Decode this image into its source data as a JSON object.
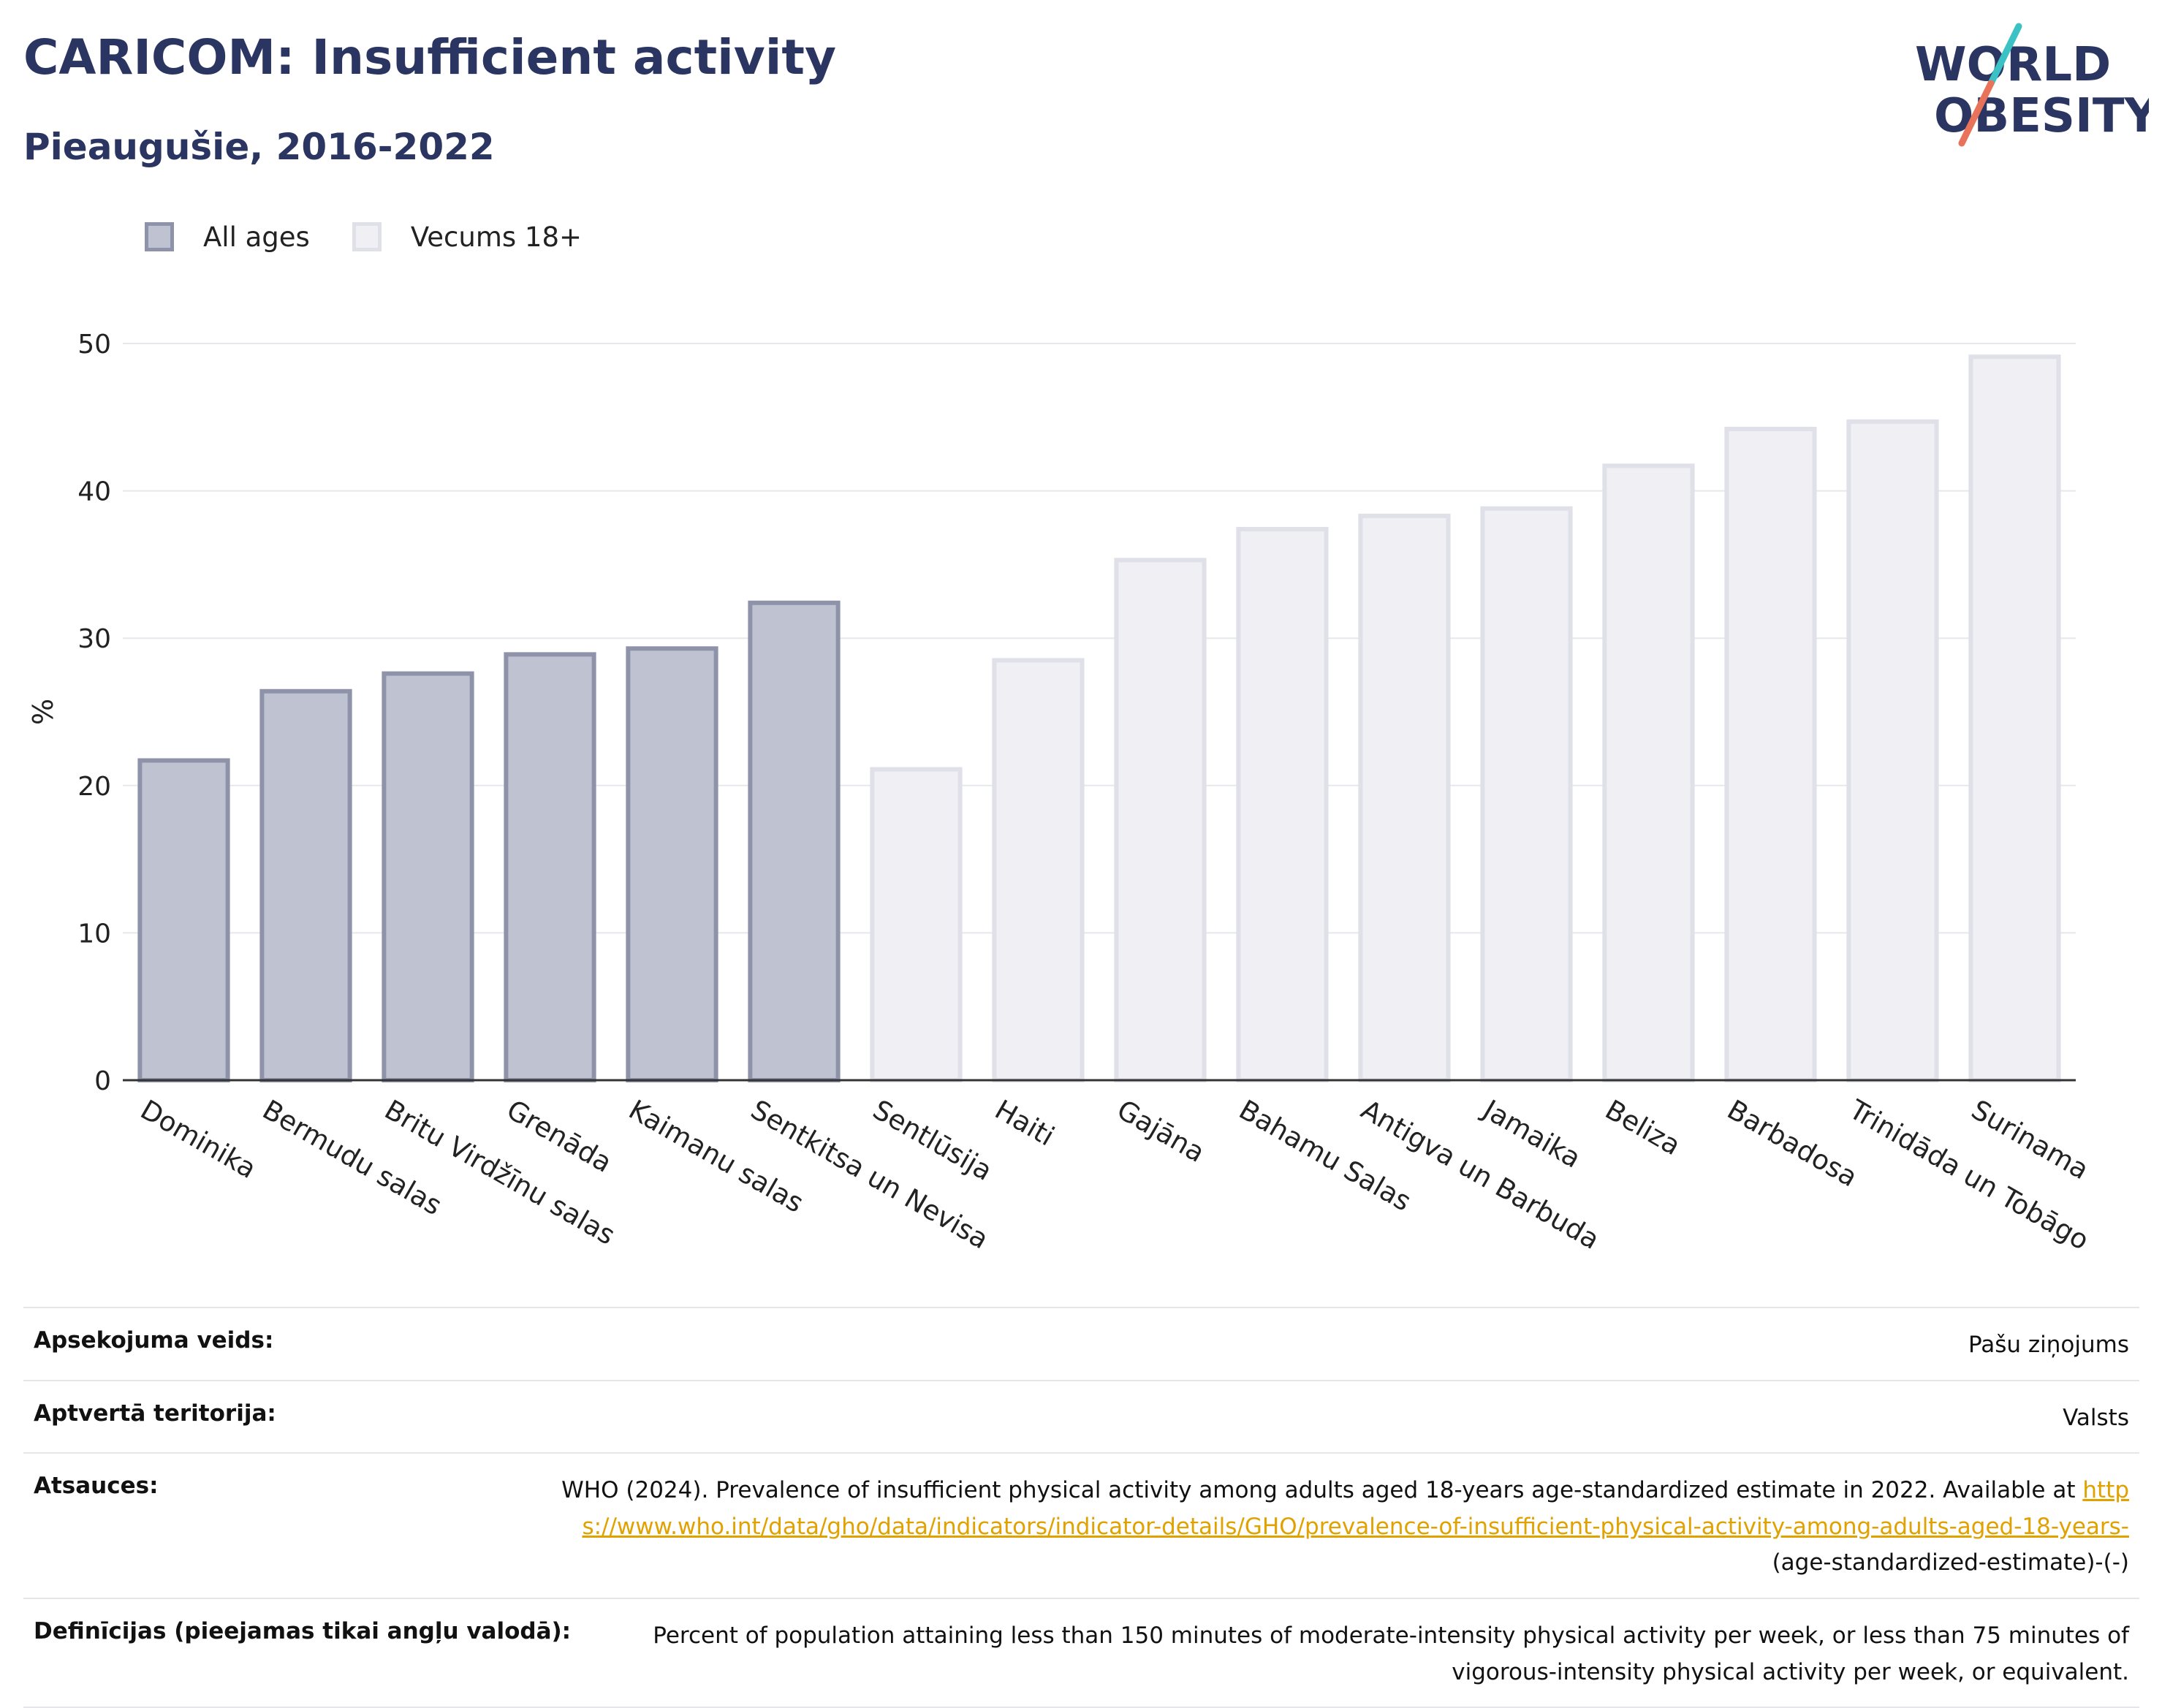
{
  "header": {
    "title": "CARICOM: Insufficient activity",
    "subtitle": "Pieaugušie, 2016-2022"
  },
  "logo": {
    "line1": "WORLD",
    "line2": "OBESITY",
    "slash_colors": [
      "#3cc1c4",
      "#e8735a"
    ]
  },
  "colors": {
    "title": "#2b3561",
    "all_ages_fill": "#bfc2d0",
    "all_ages_stroke": "#8e93aa",
    "adult_fill": "#efeff4",
    "adult_stroke": "#dfe0e8",
    "link": "#e0a200"
  },
  "chart_data": {
    "type": "bar",
    "ylabel": "%",
    "ylim": [
      0,
      50
    ],
    "yticks": [
      0,
      10,
      20,
      30,
      40,
      50
    ],
    "grid": true,
    "legend_position": "top-left",
    "series": [
      {
        "name": "All ages",
        "key": "all"
      },
      {
        "name": "Vecums 18+",
        "key": "adult"
      }
    ],
    "categories": [
      "Dominika",
      "Bermudu salas",
      "Britu Virdžīnu salas",
      "Grenāda",
      "Kaimanu salas",
      "Sentkitsa un Nevisa",
      "Sentlūsija",
      "Haiti",
      "Gajāna",
      "Bahamu Salas",
      "Antigva un Barbuda",
      "Jamaika",
      "Beliza",
      "Barbadosa",
      "Trinidāda un Tobāgo",
      "Surinama"
    ],
    "values": [
      21.7,
      26.4,
      27.6,
      28.9,
      29.3,
      32.4,
      21.1,
      28.5,
      35.3,
      37.4,
      38.3,
      38.8,
      41.7,
      44.2,
      44.7,
      49.1
    ],
    "series_of_category": [
      "all",
      "all",
      "all",
      "all",
      "all",
      "all",
      "adult",
      "adult",
      "adult",
      "adult",
      "adult",
      "adult",
      "adult",
      "adult",
      "adult",
      "adult"
    ]
  },
  "info": [
    {
      "label": "Apsekojuma veids:",
      "value": "Pašu ziņojums"
    },
    {
      "label": "Aptvertā teritorija:",
      "value": "Valsts"
    },
    {
      "label": "Atsauces:",
      "value": "WHO (2024). Prevalence of insufficient physical activity among adults aged 18-years age-standardized estimate in 2022. Available at ",
      "link": "https://www.who.int/data/gho/data/indicators/indicator-details/GHO/prevalence-of-insufficient-physical-activity-among-adults-aged-18-years-",
      "suffix": "(age-standardized-estimate)-(-)"
    },
    {
      "label": "Definīcijas (pieejamas tikai angļu valodā):",
      "value": "Percent of population attaining less than 150 minutes of moderate-intensity physical activity per week, or less than 75 minutes of vigorous-intensity physical activity per week, or equivalent."
    }
  ]
}
